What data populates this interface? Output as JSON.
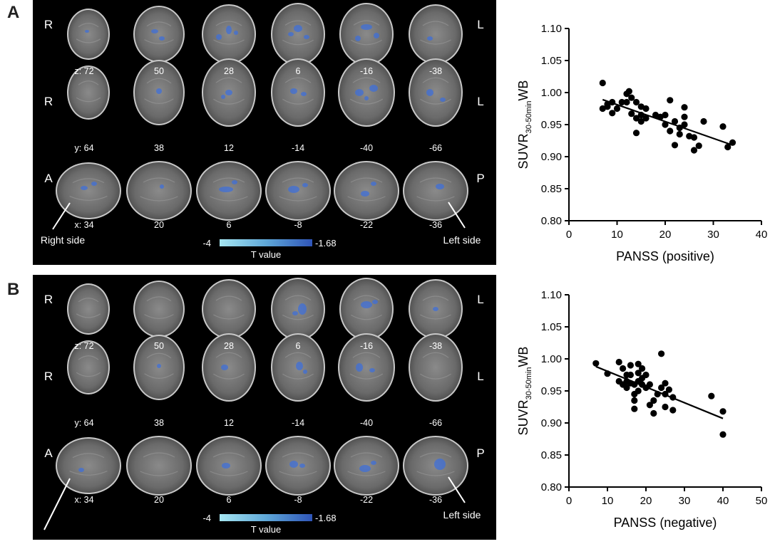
{
  "panels": [
    {
      "letter": "A",
      "orient": {
        "r1": "R",
        "l1": "L",
        "r2": "R",
        "l2": "L",
        "a": "A",
        "p": "P"
      },
      "rows": [
        {
          "coords": [
            "z: 72",
            "50",
            "28",
            "6",
            "-16",
            "-38"
          ]
        },
        {
          "coords": [
            "y: 64",
            "38",
            "12",
            "-14",
            "-40",
            "-66"
          ]
        },
        {
          "coords": [
            "x: 34",
            "20",
            "6",
            "-8",
            "-22",
            "-36"
          ]
        }
      ],
      "right_side": "Right side",
      "left_side": "Left side",
      "scale": {
        "min": "-4",
        "max": "-1.68",
        "label": "T value"
      }
    },
    {
      "letter": "B",
      "orient": {
        "r1": "R",
        "l1": "L",
        "r2": "R",
        "l2": "L",
        "a": "A",
        "p": "P"
      },
      "rows": [
        {
          "coords": [
            "z: 72",
            "50",
            "28",
            "6",
            "-16",
            "-38"
          ]
        },
        {
          "coords": [
            "y: 64",
            "38",
            "12",
            "-14",
            "-40",
            "-66"
          ]
        },
        {
          "coords": [
            "x: 34",
            "20",
            "6",
            "-8",
            "-22",
            "-36"
          ]
        }
      ],
      "right_side": "",
      "left_side": "Left side",
      "scale": {
        "min": "-4",
        "max": "-1.68",
        "label": "T value"
      }
    }
  ],
  "chart_data": [
    {
      "type": "scatter",
      "ylabel_main": "SUVR",
      "ylabel_sub": "30-50min",
      "ylabel_suffix": "WB",
      "xlabel": "PANSS (positive)",
      "xlim": [
        0,
        40
      ],
      "ylim": [
        0.8,
        1.1
      ],
      "xticks": [
        "0",
        "10",
        "20",
        "30",
        "40"
      ],
      "yticks": [
        "0.80",
        "0.85",
        "0.90",
        "0.95",
        "1.00",
        "1.05",
        "1.10"
      ],
      "points": [
        [
          7,
          1.015
        ],
        [
          7,
          0.975
        ],
        [
          8,
          0.982
        ],
        [
          8,
          0.978
        ],
        [
          9,
          0.985
        ],
        [
          9,
          0.968
        ],
        [
          10,
          0.975
        ],
        [
          11,
          0.985
        ],
        [
          12,
          0.998
        ],
        [
          12,
          0.985
        ],
        [
          12.5,
          1.002
        ],
        [
          13,
          0.967
        ],
        [
          13,
          0.992
        ],
        [
          14,
          0.985
        ],
        [
          14,
          0.96
        ],
        [
          14,
          0.937
        ],
        [
          15,
          0.978
        ],
        [
          15,
          0.965
        ],
        [
          15,
          0.955
        ],
        [
          16,
          0.975
        ],
        [
          16,
          0.96
        ],
        [
          18,
          0.965
        ],
        [
          19,
          0.962
        ],
        [
          20,
          0.95
        ],
        [
          20,
          0.965
        ],
        [
          21,
          0.94
        ],
        [
          21,
          0.988
        ],
        [
          22,
          0.955
        ],
        [
          22,
          0.918
        ],
        [
          23,
          0.945
        ],
        [
          23,
          0.935
        ],
        [
          24,
          0.962
        ],
        [
          24,
          0.95
        ],
        [
          24,
          0.977
        ],
        [
          25,
          0.932
        ],
        [
          26,
          0.93
        ],
        [
          26,
          0.91
        ],
        [
          27,
          0.917
        ],
        [
          28,
          0.955
        ],
        [
          32,
          0.947
        ],
        [
          33,
          0.915
        ],
        [
          34,
          0.922
        ]
      ],
      "fit": {
        "x": [
          7,
          34
        ],
        "y": [
          0.989,
          0.918
        ]
      },
      "grid": false
    },
    {
      "type": "scatter",
      "ylabel_main": "SUVR",
      "ylabel_sub": "30-50min",
      "ylabel_suffix": "WB",
      "xlabel": "PANSS (negative)",
      "xlim": [
        0,
        50
      ],
      "ylim": [
        0.8,
        1.1
      ],
      "xticks": [
        "0",
        "10",
        "20",
        "30",
        "40",
        "50"
      ],
      "yticks": [
        "0.80",
        "0.85",
        "0.90",
        "0.95",
        "1.00",
        "1.05",
        "1.10"
      ],
      "points": [
        [
          7,
          0.993
        ],
        [
          10,
          0.977
        ],
        [
          13,
          0.995
        ],
        [
          13,
          0.965
        ],
        [
          14,
          0.96
        ],
        [
          14,
          0.985
        ],
        [
          15,
          0.975
        ],
        [
          15,
          0.965
        ],
        [
          15,
          0.955
        ],
        [
          16,
          0.99
        ],
        [
          16,
          0.975
        ],
        [
          16,
          0.962
        ],
        [
          17,
          0.96
        ],
        [
          17,
          0.945
        ],
        [
          17,
          0.935
        ],
        [
          17,
          0.922
        ],
        [
          18,
          0.992
        ],
        [
          18,
          0.978
        ],
        [
          18,
          0.965
        ],
        [
          18,
          0.95
        ],
        [
          19,
          0.985
        ],
        [
          19,
          0.97
        ],
        [
          19,
          0.96
        ],
        [
          20,
          0.975
        ],
        [
          20,
          0.955
        ],
        [
          21,
          0.96
        ],
        [
          21,
          0.928
        ],
        [
          22,
          0.935
        ],
        [
          22,
          0.915
        ],
        [
          23,
          0.945
        ],
        [
          24,
          1.008
        ],
        [
          24,
          0.955
        ],
        [
          25,
          0.945
        ],
        [
          25,
          0.925
        ],
        [
          25,
          0.962
        ],
        [
          26,
          0.952
        ],
        [
          27,
          0.92
        ],
        [
          27,
          0.94
        ],
        [
          37,
          0.942
        ],
        [
          40,
          0.918
        ],
        [
          40,
          0.882
        ]
      ],
      "fit": {
        "x": [
          7,
          40
        ],
        "y": [
          0.988,
          0.907
        ]
      },
      "grid": false
    }
  ]
}
